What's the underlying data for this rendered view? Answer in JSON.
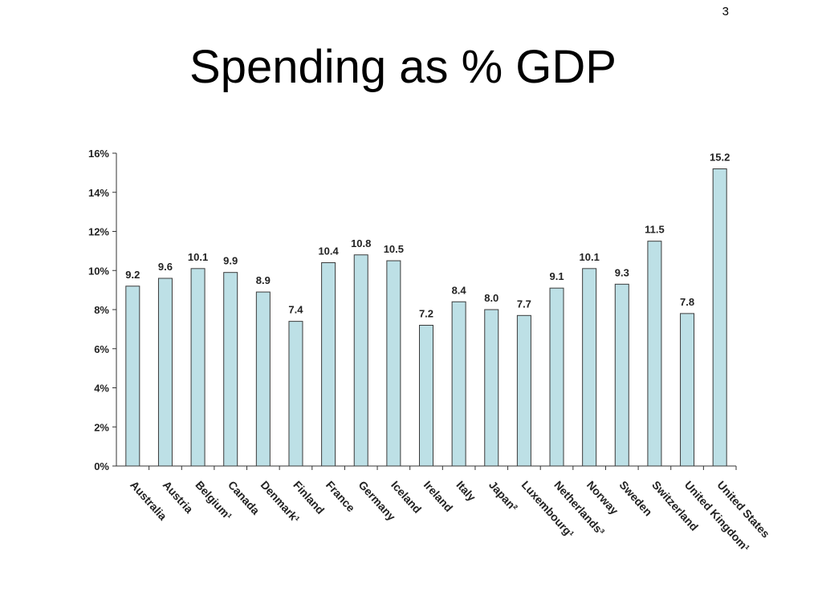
{
  "slide": {
    "page_number": "3",
    "title": "Spending as % GDP"
  },
  "chart_data": {
    "type": "bar",
    "title": "",
    "xlabel": "",
    "ylabel": "",
    "ylim": [
      0,
      16
    ],
    "yticks": [
      "0%",
      "2%",
      "4%",
      "6%",
      "8%",
      "10%",
      "12%",
      "14%",
      "16%"
    ],
    "grid": false,
    "legend": "none",
    "bar_color": "#bde0e6",
    "bar_outline": "#3a3a3a",
    "categories": [
      "Australia",
      "Austria",
      "Belgium¹",
      "Canada",
      "Denmark¹",
      "Finland",
      "France",
      "Germany",
      "Iceland",
      "Ireland",
      "Italy",
      "Japan²",
      "Luxembourg¹",
      "Netherlands³",
      "Norway",
      "Sweden",
      "Switzerland",
      "United Kingdom¹",
      "United States"
    ],
    "values": [
      9.2,
      9.6,
      10.1,
      9.9,
      8.9,
      7.4,
      10.4,
      10.8,
      10.5,
      7.2,
      8.4,
      8.0,
      7.7,
      9.1,
      10.1,
      9.3,
      11.5,
      7.8,
      15.2
    ],
    "data_labels": [
      "9.2",
      "9.6",
      "10.1",
      "9.9",
      "8.9",
      "7.4",
      "10.4",
      "10.8",
      "10.5",
      "7.2",
      "8.4",
      "8.0",
      "7.7",
      "9.1",
      "10.1",
      "9.3",
      "11.5",
      "7.8",
      "15.2"
    ]
  }
}
